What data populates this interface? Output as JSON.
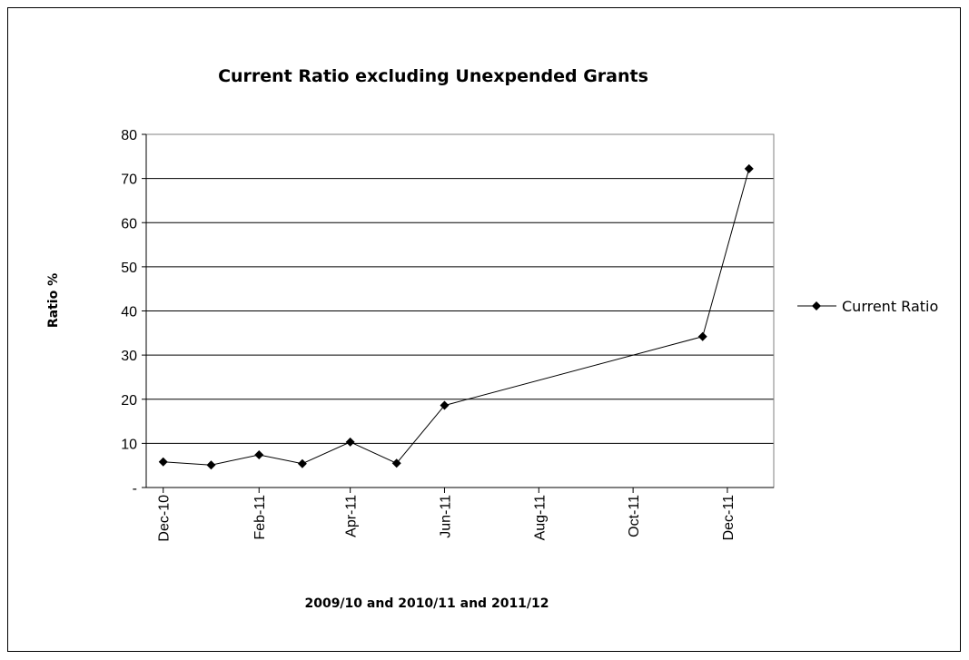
{
  "chart_data": {
    "type": "line",
    "title": "Current Ratio excluding Unexpended Grants",
    "xlabel": "2009/10 and 2010/11 and 2011/12",
    "ylabel": "Ratio %",
    "ylim": [
      0,
      80
    ],
    "yticks": [
      "-",
      "10",
      "20",
      "30",
      "40",
      "50",
      "60",
      "70",
      "80"
    ],
    "xlim": [
      "2010-11-20",
      "2011-12-31"
    ],
    "xticks": [
      {
        "date": "2010-12-01",
        "label": "Dec-10"
      },
      {
        "date": "2011-02-01",
        "label": "Feb-11"
      },
      {
        "date": "2011-04-01",
        "label": "Apr-11"
      },
      {
        "date": "2011-06-01",
        "label": "Jun-11"
      },
      {
        "date": "2011-08-01",
        "label": "Aug-11"
      },
      {
        "date": "2011-10-01",
        "label": "Oct-11"
      },
      {
        "date": "2011-12-01",
        "label": "Dec-11"
      }
    ],
    "series": [
      {
        "name": "Current Ratio",
        "color": "#000000",
        "marker": "diamond",
        "x": [
          "2010-12-01",
          "2011-01-01",
          "2011-02-01",
          "2011-03-01",
          "2011-04-01",
          "2011-05-01",
          "2011-06-01",
          "2011-11-15",
          "2011-12-15"
        ],
        "y": [
          5.8,
          5.1,
          7.4,
          5.4,
          10.3,
          5.5,
          18.6,
          34.2,
          72.2
        ]
      }
    ],
    "grid": "horizontal",
    "legend_position": "right"
  }
}
